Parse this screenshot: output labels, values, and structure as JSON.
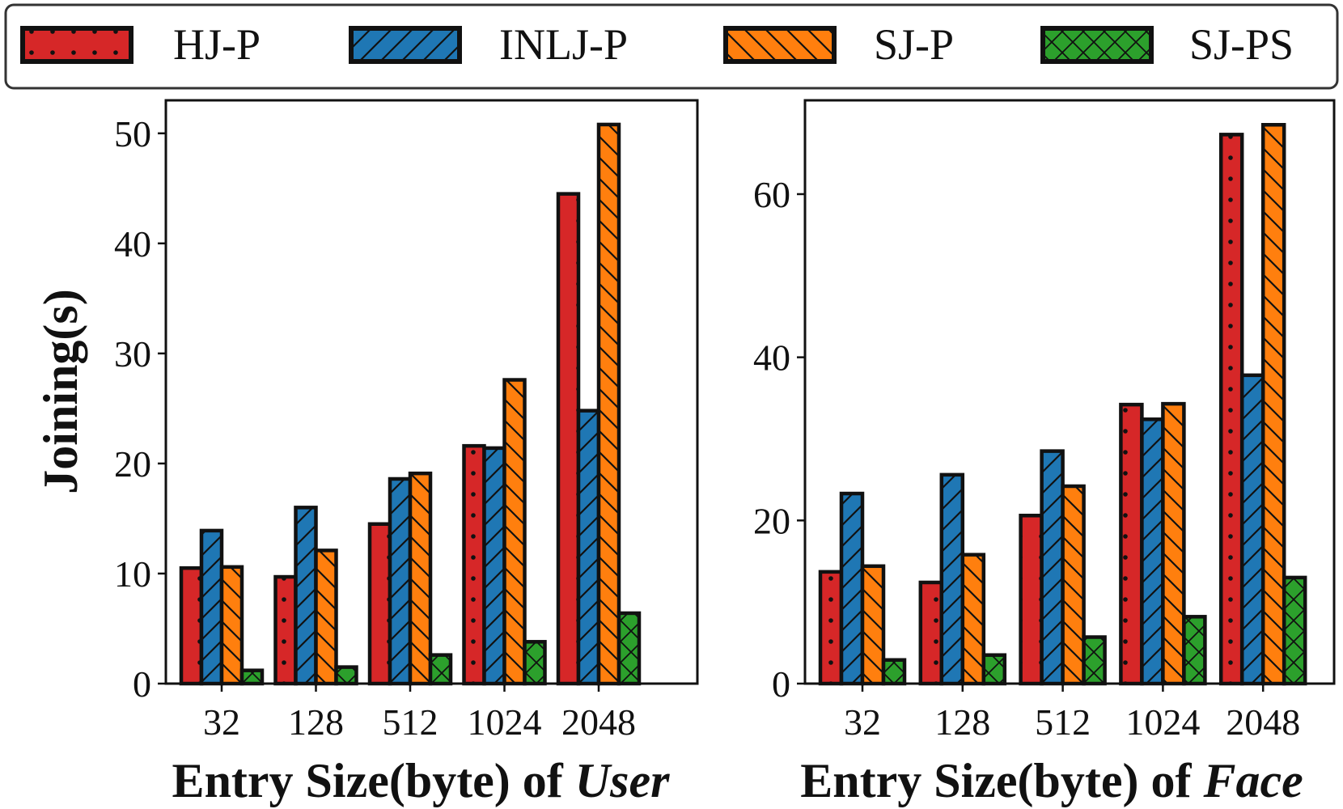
{
  "legend": {
    "items": [
      {
        "label": "HJ-P",
        "color": "#d62728",
        "pattern": "dots"
      },
      {
        "label": "INLJ-P",
        "color": "#1f77b4",
        "pattern": "slash"
      },
      {
        "label": "SJ-P",
        "color": "#ff7f0e",
        "pattern": "backslash"
      },
      {
        "label": "SJ-PS",
        "color": "#2ca02c",
        "pattern": "cross"
      }
    ]
  },
  "chart_data": [
    {
      "type": "bar",
      "title": "",
      "xlabel_prefix": "Entry Size(byte) of ",
      "xlabel_italic": "User",
      "ylabel": "Joining(s)",
      "categories": [
        "32",
        "128",
        "512",
        "1024",
        "2048"
      ],
      "ylim": [
        0,
        53
      ],
      "yticks": [
        0,
        10,
        20,
        30,
        40,
        50
      ],
      "series": [
        {
          "name": "HJ-P",
          "values": [
            10.5,
            9.7,
            14.5,
            21.6,
            44.5
          ]
        },
        {
          "name": "INLJ-P",
          "values": [
            13.9,
            16.0,
            18.6,
            21.4,
            24.8
          ]
        },
        {
          "name": "SJ-P",
          "values": [
            10.6,
            12.1,
            19.1,
            27.6,
            50.8
          ]
        },
        {
          "name": "SJ-PS",
          "values": [
            1.2,
            1.5,
            2.6,
            3.8,
            6.4
          ]
        }
      ]
    },
    {
      "type": "bar",
      "title": "",
      "xlabel_prefix": "Entry Size(byte) of ",
      "xlabel_italic": "Face",
      "ylabel": "",
      "categories": [
        "32",
        "128",
        "512",
        "1024",
        "2048"
      ],
      "ylim": [
        0,
        71.5
      ],
      "yticks": [
        0,
        20,
        40,
        60
      ],
      "series": [
        {
          "name": "HJ-P",
          "values": [
            13.7,
            12.4,
            20.6,
            34.2,
            67.3
          ]
        },
        {
          "name": "INLJ-P",
          "values": [
            23.3,
            25.6,
            28.5,
            32.4,
            37.8
          ]
        },
        {
          "name": "SJ-P",
          "values": [
            14.4,
            15.8,
            24.2,
            34.3,
            68.5
          ]
        },
        {
          "name": "SJ-PS",
          "values": [
            2.9,
            3.5,
            5.7,
            8.2,
            13.0
          ]
        }
      ]
    }
  ]
}
